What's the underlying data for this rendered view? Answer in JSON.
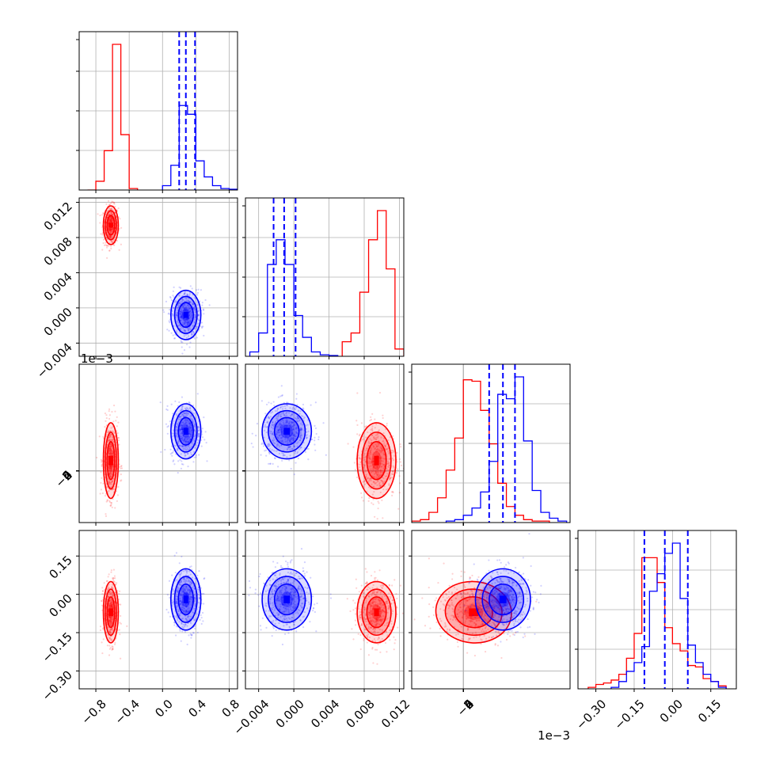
{
  "chart_data": {
    "type": "corner",
    "parameters": [
      {
        "range": [
          -1.0,
          0.9
        ],
        "ticks": [
          -0.8,
          -0.4,
          0.0,
          0.4,
          0.8
        ],
        "tick_labels": [
          "−0.8",
          "−0.4",
          "0.0",
          "0.4",
          "0.8"
        ],
        "offset_label": ""
      },
      {
        "range": [
          -0.0055,
          0.0125
        ],
        "ticks": [
          -0.004,
          0.0,
          0.004,
          0.008,
          0.012
        ],
        "tick_labels": [
          "−0.004",
          "0.000",
          "0.004",
          "0.008",
          "0.012"
        ],
        "offset_label": ""
      },
      {
        "range": [
          -3.0,
          6.2
        ],
        "ticks": [
          -2,
          0,
          2,
          4,
          6
        ],
        "tick_labels": [
          "−2",
          "0",
          "2",
          "4",
          "6"
        ],
        "offset_label": "1e−3"
      },
      {
        "range": [
          -0.37,
          0.25
        ],
        "ticks": [
          -0.3,
          -0.15,
          0.0,
          0.15
        ],
        "tick_labels": [
          "−0.30",
          "−0.15",
          "0.00",
          "0.15"
        ],
        "offset_label": ""
      }
    ],
    "series": [
      {
        "color": "#ff0000",
        "means": [
          -0.62,
          0.0094,
          0.6,
          -0.07
        ],
        "stds": [
          0.045,
          0.0011,
          1.1,
          0.06
        ],
        "correlations": [
          [
            0,
            1,
            0.0
          ],
          [
            0,
            2,
            0.0
          ],
          [
            0,
            3,
            0.0
          ],
          [
            1,
            2,
            0.0
          ],
          [
            1,
            3,
            0.0
          ],
          [
            2,
            3,
            -0.15
          ]
        ],
        "histograms": [
          {
            "bins": [
              -0.9,
              -0.8,
              -0.7,
              -0.6,
              -0.5,
              -0.4,
              -0.3
            ],
            "counts": [
              0,
              0.06,
              0.27,
              1.0,
              0.38,
              0.01
            ]
          },
          {
            "bins": [
              0.0055,
              0.0065,
              0.0075,
              0.0085,
              0.0095,
              0.0105,
              0.0115,
              0.0125
            ],
            "counts": [
              0.1,
              0.16,
              0.44,
              0.8,
              1.0,
              0.6,
              0.05
            ]
          },
          {
            "bins": [
              -3,
              -2.5,
              -2,
              -1.5,
              -1,
              -0.5,
              0,
              0.5,
              1,
              1.5,
              2,
              2.5,
              3,
              3.5,
              4,
              4.5,
              5
            ],
            "counts": [
              0.01,
              0.02,
              0.07,
              0.17,
              0.36,
              0.58,
              0.98,
              0.97,
              0.77,
              0.54,
              0.27,
              0.11,
              0.05,
              0.02,
              0.01,
              0.01
            ]
          },
          {
            "bins": [
              -0.33,
              -0.3,
              -0.27,
              -0.24,
              -0.21,
              -0.18,
              -0.15,
              -0.12,
              -0.09,
              -0.06,
              -0.03,
              0.0,
              0.03,
              0.06,
              0.09,
              0.12,
              0.15,
              0.18,
              0.21
            ],
            "counts": [
              0.01,
              0.03,
              0.04,
              0.06,
              0.1,
              0.21,
              0.38,
              0.9,
              0.9,
              0.73,
              0.42,
              0.31,
              0.26,
              0.16,
              0.15,
              0.07,
              0.05,
              0.02
            ]
          }
        ]
      },
      {
        "color": "#0000ff",
        "means": [
          0.28,
          -0.0008,
          2.3,
          -0.02
        ],
        "stds": [
          0.09,
          0.0014,
          0.8,
          0.06
        ],
        "correlations": [
          [
            0,
            1,
            0.0
          ],
          [
            0,
            2,
            0.0
          ],
          [
            0,
            3,
            0.0
          ],
          [
            1,
            2,
            0.0
          ],
          [
            1,
            3,
            0.0
          ],
          [
            2,
            3,
            0.0
          ]
        ],
        "histograms": [
          {
            "bins": [
              0.0,
              0.1,
              0.2,
              0.3,
              0.4,
              0.5,
              0.6,
              0.7,
              0.8,
              0.9
            ],
            "counts": [
              0.03,
              0.17,
              0.58,
              0.52,
              0.2,
              0.09,
              0.03,
              0.01,
              0.005
            ]
          },
          {
            "bins": [
              -0.005,
              -0.004,
              -0.003,
              -0.002,
              -0.001,
              0.0,
              0.001,
              0.002,
              0.003,
              0.004,
              0.005
            ],
            "counts": [
              0.03,
              0.16,
              0.63,
              0.8,
              0.63,
              0.28,
              0.13,
              0.03,
              0.01,
              0.005
            ]
          },
          {
            "bins": [
              -1,
              -0.5,
              0,
              0.5,
              1,
              1.5,
              2,
              2.5,
              3,
              3.5,
              4,
              4.5,
              5,
              5.5,
              6
            ],
            "counts": [
              0.01,
              0.02,
              0.05,
              0.1,
              0.21,
              0.42,
              0.88,
              0.85,
              1.0,
              0.56,
              0.22,
              0.07,
              0.03,
              0.01
            ]
          },
          {
            "bins": [
              -0.24,
              -0.21,
              -0.18,
              -0.15,
              -0.12,
              -0.09,
              -0.06,
              -0.03,
              0.0,
              0.03,
              0.06,
              0.09,
              0.12,
              0.15,
              0.18,
              0.21
            ],
            "counts": [
              0.01,
              0.05,
              0.12,
              0.18,
              0.29,
              0.67,
              0.79,
              0.93,
              1.0,
              0.62,
              0.3,
              0.18,
              0.1,
              0.05,
              0.01
            ]
          }
        ],
        "quantiles": [
          [
            0.2,
            0.28,
            0.39
          ],
          [
            -0.0023,
            -0.0011,
            0.0002
          ],
          [
            1.5,
            2.3,
            3.0
          ],
          [
            -0.11,
            -0.03,
            0.06
          ]
        ]
      }
    ],
    "contour_levels_sigma": [
      0.5,
      1.0,
      1.5,
      2.0
    ],
    "grid": true
  }
}
